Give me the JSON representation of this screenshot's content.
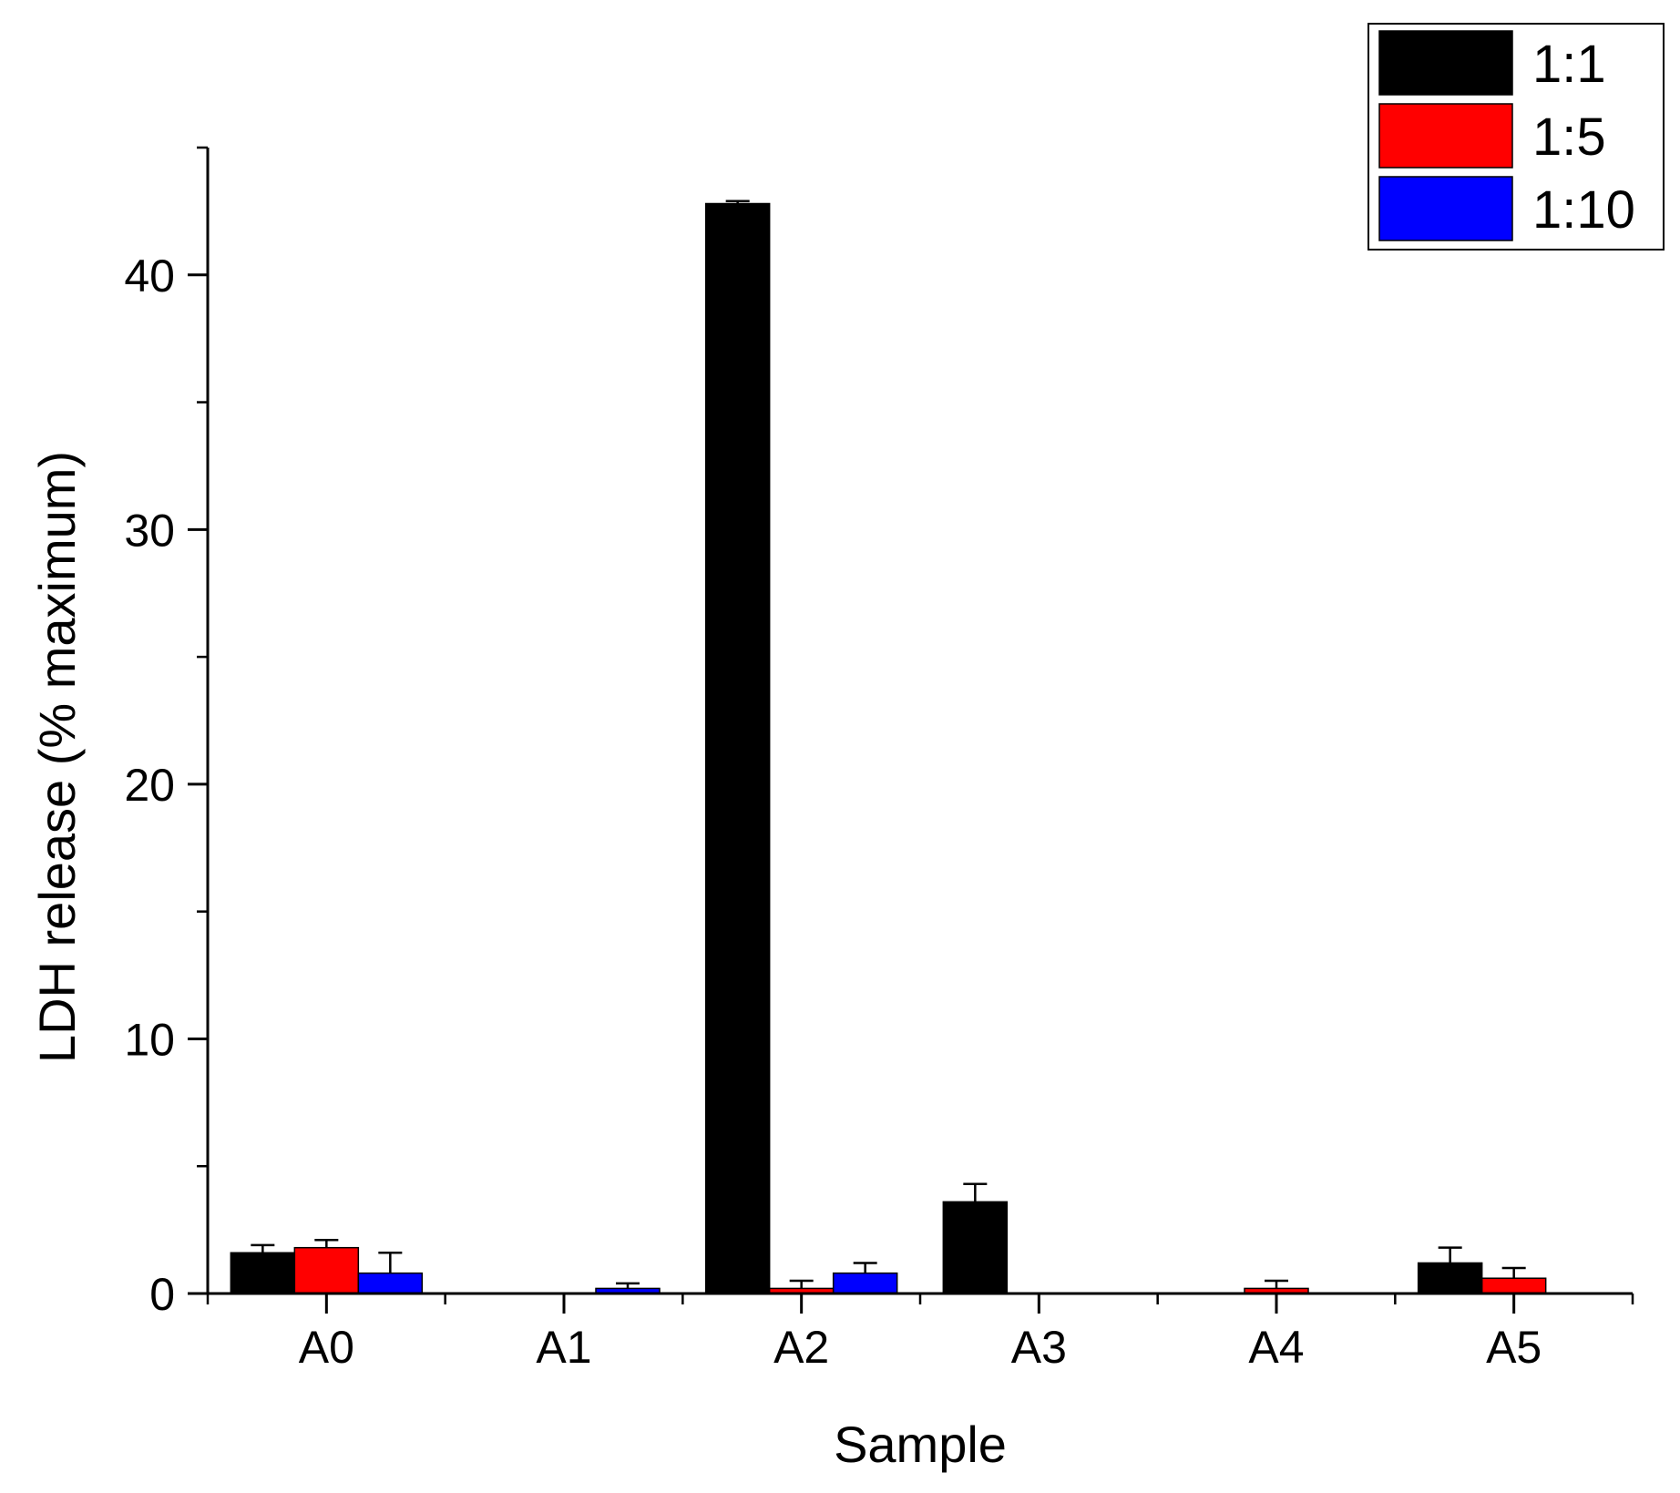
{
  "chart_data": {
    "type": "bar",
    "title": "",
    "xlabel": "Sample",
    "ylabel": "LDH release (% maximum)",
    "categories": [
      "A0",
      "A1",
      "A2",
      "A3",
      "A4",
      "A5"
    ],
    "ylim": [
      0,
      45
    ],
    "yticks": [
      0,
      10,
      20,
      30,
      40
    ],
    "ytick_labels": [
      "0",
      "10",
      "20",
      "30",
      "40"
    ],
    "y_minor_step": 5,
    "grid": false,
    "legend_position": "top-right",
    "series": [
      {
        "name": "1:1",
        "color": "#000000",
        "values": [
          1.6,
          0,
          42.8,
          3.6,
          0,
          1.2
        ],
        "errors": [
          0.3,
          0,
          0.1,
          0.7,
          0,
          0.6
        ]
      },
      {
        "name": "1:5",
        "color": "#ff0000",
        "values": [
          1.8,
          0,
          0.2,
          0,
          0.2,
          0.6
        ],
        "errors": [
          0.3,
          0,
          0.3,
          0,
          0.3,
          0.4
        ]
      },
      {
        "name": "1:10",
        "color": "#0000ff",
        "values": [
          0.8,
          0.2,
          0.8,
          0,
          0,
          0
        ],
        "errors": [
          0.8,
          0.2,
          0.4,
          0,
          0,
          0
        ]
      }
    ]
  }
}
